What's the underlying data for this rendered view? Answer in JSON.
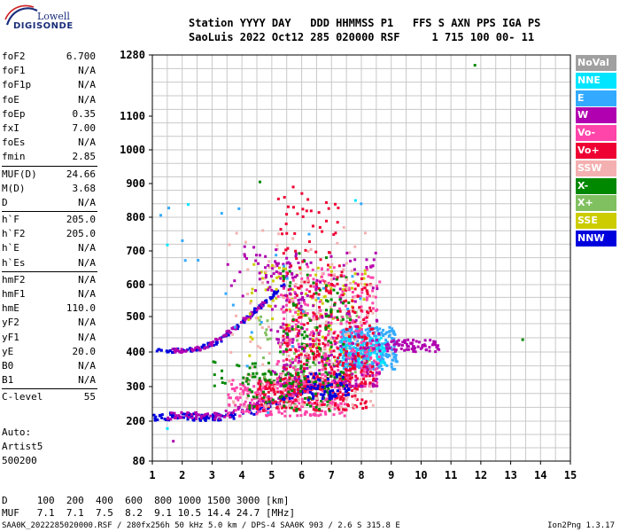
{
  "logo": {
    "line1": "Lowell",
    "line2": "DIGISONDE"
  },
  "header": {
    "row1": "Station YYYY DAY   DDD HHMMSS P1   FFS S AXN PPS IGA PS",
    "row2": "SaoLuis 2022 Oct12 285 020000 RSF     1 715 100 00- 11"
  },
  "params": [
    {
      "label": "foF2",
      "value": "6.700"
    },
    {
      "label": "foF1",
      "value": "N/A"
    },
    {
      "label": "foF1p",
      "value": "N/A"
    },
    {
      "label": "foE",
      "value": "N/A"
    },
    {
      "label": "foEp",
      "value": "0.35"
    },
    {
      "label": "fxI",
      "value": "7.00"
    },
    {
      "label": "foEs",
      "value": "N/A"
    },
    {
      "label": "fmin",
      "value": "2.85"
    },
    {
      "label": "MUF(D)",
      "value": "24.66"
    },
    {
      "label": "M(D)",
      "value": "3.68"
    },
    {
      "label": "D",
      "value": "N/A"
    },
    {
      "label": "h`F",
      "value": "205.0"
    },
    {
      "label": "h`F2",
      "value": "205.0"
    },
    {
      "label": "h`E",
      "value": "N/A"
    },
    {
      "label": "h`Es",
      "value": "N/A"
    },
    {
      "label": "hmF2",
      "value": "N/A"
    },
    {
      "label": "hmF1",
      "value": "N/A"
    },
    {
      "label": "hmE",
      "value": "110.0"
    },
    {
      "label": "yF2",
      "value": "N/A"
    },
    {
      "label": "yF1",
      "value": "N/A"
    },
    {
      "label": "yE",
      "value": "20.0"
    },
    {
      "label": "B0",
      "value": "N/A"
    },
    {
      "label": "B1",
      "value": "N/A"
    },
    {
      "label": "C-level",
      "value": "55"
    }
  ],
  "auto": {
    "line1": "Auto:",
    "line2": "Artist5",
    "line3": "500200"
  },
  "legend": [
    {
      "label": "NoVal",
      "color": "#a0a0a0"
    },
    {
      "label": "NNE",
      "color": "#00e5ff"
    },
    {
      "label": "E",
      "color": "#33aaff"
    },
    {
      "label": "W",
      "color": "#b000b0"
    },
    {
      "label": "Vo-",
      "color": "#ff44aa"
    },
    {
      "label": "Vo+",
      "color": "#ee0033"
    },
    {
      "label": "SSW",
      "color": "#f4b0b0"
    },
    {
      "label": "X-",
      "color": "#008800"
    },
    {
      "label": "X+",
      "color": "#80c060"
    },
    {
      "label": "SSE",
      "color": "#cccc00"
    },
    {
      "label": "NNW",
      "color": "#0000dd"
    }
  ],
  "bottom": {
    "d_row": "D     100  200  400  600  800 1000 1500 3000 [km]",
    "muf_row": "MUF   7.1  7.1  7.5  8.2  9.1 10.5 14.4 24.7 [MHz]"
  },
  "footer": {
    "left": "SAA0K_2022285020000.RSF / 280fx256h 50 kHz 5.0 km / DPS-4 SAA0K 903 / 2.6 S 315.8 E",
    "right": "Ion2Png 1.3.17"
  },
  "chart_data": {
    "type": "scatter",
    "x_ticks": [
      "1",
      "2",
      "3",
      "4",
      "5",
      "6",
      "7",
      "8",
      "9",
      "10",
      "11",
      "12",
      "13",
      "14",
      "15"
    ],
    "xlim": [
      1,
      15
    ],
    "y_ticks": [
      "80",
      "200",
      "300",
      "400",
      "500",
      "600",
      "700",
      "800",
      "900",
      "1000",
      "1100",
      "1280"
    ],
    "ylim": [
      80,
      1280
    ],
    "grid": true,
    "legend_position": "right",
    "clusters": [
      {
        "name": "NNW",
        "kind": "trace",
        "pts": [
          [
            1.1,
            208
          ],
          [
            1.5,
            212
          ],
          [
            2.0,
            218
          ],
          [
            2.5,
            210
          ],
          [
            3.0,
            210
          ],
          [
            3.5,
            214
          ],
          [
            4.0,
            222
          ],
          [
            4.5,
            232
          ],
          [
            5.0,
            248
          ],
          [
            5.5,
            268
          ],
          [
            6.0,
            290
          ],
          [
            6.3,
            300
          ]
        ],
        "jitter": [
          0.08,
          10
        ],
        "count": 160
      },
      {
        "name": "NNW",
        "kind": "trace",
        "pts": [
          [
            1.2,
            408
          ],
          [
            1.7,
            404
          ],
          [
            2.3,
            405
          ],
          [
            2.8,
            418
          ],
          [
            3.2,
            430
          ],
          [
            3.7,
            460
          ],
          [
            4.2,
            500
          ],
          [
            4.6,
            530
          ],
          [
            5.0,
            560
          ],
          [
            5.4,
            600
          ]
        ],
        "jitter": [
          0.05,
          6
        ],
        "count": 110
      },
      {
        "name": "W",
        "kind": "trace",
        "pts": [
          [
            1.6,
            405
          ],
          [
            2.2,
            402
          ],
          [
            2.8,
            415
          ],
          [
            3.3,
            440
          ],
          [
            3.8,
            470
          ],
          [
            4.3,
            505
          ],
          [
            4.8,
            550
          ]
        ],
        "jitter": [
          0.05,
          6
        ],
        "count": 70
      },
      {
        "name": "W",
        "kind": "trace",
        "pts": [
          [
            1.5,
            215
          ],
          [
            2.2,
            220
          ],
          [
            2.9,
            212
          ],
          [
            3.5,
            220
          ],
          [
            4.2,
            240
          ],
          [
            4.8,
            258
          ],
          [
            5.5,
            280
          ],
          [
            6.2,
            300
          ],
          [
            6.8,
            312
          ]
        ],
        "jitter": [
          0.08,
          10
        ],
        "count": 110
      },
      {
        "name": "Vo-",
        "kind": "blob",
        "x": [
          3.5,
          7.5
        ],
        "y": [
          215,
          320
        ],
        "count": 260
      },
      {
        "name": "Vo+",
        "kind": "blob",
        "x": [
          4.5,
          8.2
        ],
        "y": [
          230,
          330
        ],
        "count": 200
      },
      {
        "name": "X-",
        "kind": "blob",
        "x": [
          4.0,
          7.0
        ],
        "y": [
          230,
          340
        ],
        "count": 90
      },
      {
        "name": "X+",
        "kind": "blob",
        "x": [
          4.5,
          8.0
        ],
        "y": [
          300,
          520
        ],
        "count": 80
      },
      {
        "name": "SSE",
        "kind": "blob",
        "x": [
          4.2,
          8.3
        ],
        "y": [
          360,
          660
        ],
        "count": 110
      },
      {
        "name": "E",
        "kind": "blob",
        "x": [
          7.3,
          9.2
        ],
        "y": [
          350,
          470
        ],
        "count": 280
      },
      {
        "name": "NNE",
        "kind": "blob",
        "x": [
          7.2,
          8.8
        ],
        "y": [
          360,
          440
        ],
        "count": 90
      },
      {
        "name": "W",
        "kind": "blob",
        "x": [
          8.8,
          10.6
        ],
        "y": [
          400,
          435
        ],
        "count": 70
      },
      {
        "name": "Vo-",
        "kind": "column",
        "x": [
          5.2,
          8.6
        ],
        "y": [
          300,
          660
        ],
        "count": 380
      },
      {
        "name": "Vo+",
        "kind": "column",
        "x": [
          5.4,
          8.4
        ],
        "y": [
          300,
          620
        ],
        "count": 300
      },
      {
        "name": "W",
        "kind": "column",
        "x": [
          5.0,
          8.6
        ],
        "y": [
          300,
          700
        ],
        "count": 200
      },
      {
        "name": "X-",
        "kind": "column",
        "x": [
          5.3,
          7.6
        ],
        "y": [
          300,
          700
        ],
        "count": 110
      },
      {
        "name": "SSW",
        "kind": "column",
        "x": [
          3.5,
          8.5
        ],
        "y": [
          240,
          780
        ],
        "count": 140
      },
      {
        "name": "NNW",
        "kind": "blob",
        "x": [
          6.2,
          7.6
        ],
        "y": [
          260,
          340
        ],
        "count": 60
      },
      {
        "name": "Vo+",
        "kind": "sparse",
        "x": [
          5.0,
          7.4
        ],
        "y": [
          560,
          890
        ],
        "count": 60
      },
      {
        "name": "W",
        "kind": "sparse",
        "x": [
          3.5,
          6.0
        ],
        "y": [
          560,
          720
        ],
        "count": 40
      },
      {
        "name": "E",
        "kind": "sparse",
        "x": [
          1.2,
          8.0
        ],
        "y": [
          180,
          850
        ],
        "count": 25
      },
      {
        "name": "X-",
        "kind": "sparse",
        "x": [
          3.0,
          5.0
        ],
        "y": [
          300,
          380
        ],
        "count": 25
      }
    ],
    "points": [
      {
        "name": "X-",
        "x": 11.8,
        "y": 1250
      },
      {
        "name": "X-",
        "x": 13.4,
        "y": 435
      },
      {
        "name": "NNE",
        "x": 2.2,
        "y": 838
      },
      {
        "name": "NNE",
        "x": 1.5,
        "y": 718
      },
      {
        "name": "E",
        "x": 2.1,
        "y": 672
      },
      {
        "name": "W",
        "x": 1.7,
        "y": 140
      },
      {
        "name": "NNE",
        "x": 1.5,
        "y": 178
      },
      {
        "name": "X-",
        "x": 4.6,
        "y": 905
      },
      {
        "name": "SSE",
        "x": 4.4,
        "y": 660
      },
      {
        "name": "NNE",
        "x": 7.8,
        "y": 850
      }
    ]
  }
}
